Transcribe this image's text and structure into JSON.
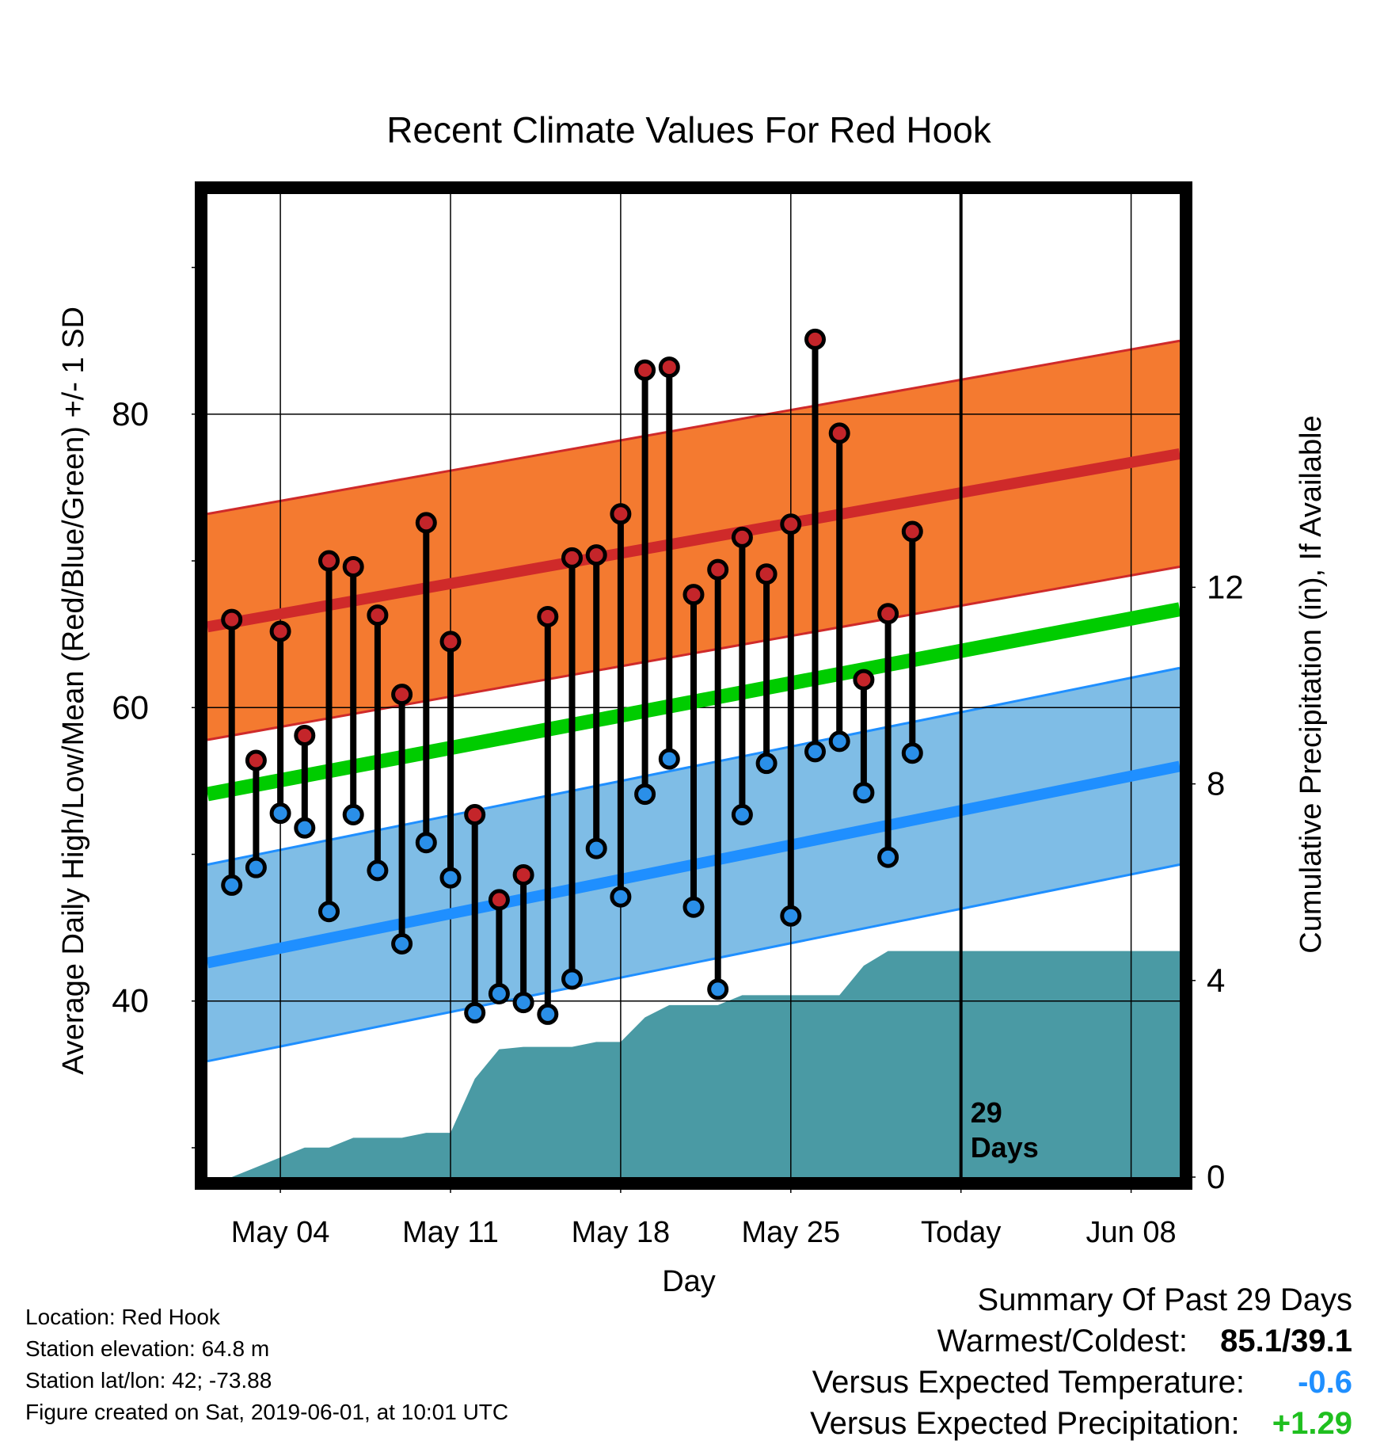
{
  "chart_data": {
    "type": "line",
    "title": "Recent Climate Values For Red Hook",
    "xlabel": "Day",
    "ylabel": "Average Daily High/Low/Mean (Red/Blue/Green) +/- 1 SD",
    "y2label": "Cumulative Precipitation (in), If Available",
    "x_range": [
      "2019-05-01",
      "2019-06-10"
    ],
    "ylim": [
      28,
      95
    ],
    "y2lim": [
      0,
      20
    ],
    "x_ticks": [
      {
        "date": "2019-05-04",
        "label": "May 04"
      },
      {
        "date": "2019-05-11",
        "label": "May 11"
      },
      {
        "date": "2019-05-18",
        "label": "May 18"
      },
      {
        "date": "2019-05-25",
        "label": "May 25"
      },
      {
        "date": "2019-06-01",
        "label": "Today"
      },
      {
        "date": "2019-06-08",
        "label": "Jun 08"
      }
    ],
    "y_ticks": [
      {
        "v": 40,
        "label": "40"
      },
      {
        "v": 60,
        "label": "60"
      },
      {
        "v": 80,
        "label": "80"
      }
    ],
    "y_minor_ticks": [
      30,
      50,
      70,
      90
    ],
    "y2_ticks": [
      {
        "v": 0,
        "label": "0"
      },
      {
        "v": 4,
        "label": "4"
      },
      {
        "v": 8,
        "label": "8"
      },
      {
        "v": 12,
        "label": "12"
      }
    ],
    "today": "2019-06-01",
    "today_label": "29\nDays",
    "normal_high": {
      "start": [
        "2019-05-01",
        65.5
      ],
      "end": [
        "2019-06-10",
        77.3
      ],
      "sd": 7.7
    },
    "normal_low": {
      "start": [
        "2019-05-01",
        42.6
      ],
      "end": [
        "2019-06-10",
        56.0
      ],
      "sd": 6.7
    },
    "normal_mean": {
      "start": [
        "2019-05-01",
        54.1
      ],
      "end": [
        "2019-06-10",
        66.7
      ]
    },
    "daily": {
      "dates": [
        "2019-05-02",
        "2019-05-03",
        "2019-05-04",
        "2019-05-05",
        "2019-05-06",
        "2019-05-07",
        "2019-05-08",
        "2019-05-09",
        "2019-05-10",
        "2019-05-11",
        "2019-05-12",
        "2019-05-13",
        "2019-05-14",
        "2019-05-15",
        "2019-05-16",
        "2019-05-17",
        "2019-05-18",
        "2019-05-19",
        "2019-05-20",
        "2019-05-21",
        "2019-05-22",
        "2019-05-23",
        "2019-05-24",
        "2019-05-25",
        "2019-05-26",
        "2019-05-27",
        "2019-05-28",
        "2019-05-29",
        "2019-05-30"
      ],
      "high": [
        66.0,
        56.4,
        65.2,
        58.1,
        70.0,
        69.6,
        66.3,
        60.9,
        72.6,
        64.5,
        52.7,
        46.9,
        48.6,
        66.2,
        70.2,
        70.4,
        73.2,
        83.0,
        83.2,
        67.7,
        69.4,
        71.6,
        69.1,
        72.5,
        85.1,
        78.7,
        61.9,
        66.4,
        72.0
      ],
      "low": [
        47.9,
        49.1,
        52.8,
        51.8,
        46.1,
        52.7,
        48.9,
        43.9,
        50.8,
        48.4,
        39.2,
        40.5,
        39.9,
        39.1,
        41.5,
        50.4,
        47.1,
        54.1,
        56.5,
        46.4,
        40.8,
        52.7,
        56.2,
        45.8,
        57.0,
        57.7,
        54.2,
        49.8,
        56.9
      ]
    },
    "precip": {
      "dates": [
        "2019-05-02",
        "2019-05-03",
        "2019-05-04",
        "2019-05-05",
        "2019-05-06",
        "2019-05-07",
        "2019-05-08",
        "2019-05-09",
        "2019-05-10",
        "2019-05-11",
        "2019-05-12",
        "2019-05-13",
        "2019-05-14",
        "2019-05-15",
        "2019-05-16",
        "2019-05-17",
        "2019-05-18",
        "2019-05-19",
        "2019-05-20",
        "2019-05-21",
        "2019-05-22",
        "2019-05-23",
        "2019-05-24",
        "2019-05-25",
        "2019-05-26",
        "2019-05-27",
        "2019-05-28",
        "2019-05-29",
        "2019-05-30",
        "2019-05-31",
        "2019-06-01",
        "2019-06-10"
      ],
      "values": [
        0.0,
        0.2,
        0.4,
        0.6,
        0.6,
        0.8,
        0.8,
        0.8,
        0.9,
        0.9,
        2.0,
        2.6,
        2.65,
        2.65,
        2.65,
        2.75,
        2.75,
        3.25,
        3.5,
        3.5,
        3.5,
        3.7,
        3.7,
        3.7,
        3.7,
        3.7,
        4.3,
        4.6,
        4.6,
        4.6,
        4.6,
        4.6
      ]
    },
    "colors": {
      "high_band": "#f47a30",
      "high_line": "#cf2a2a",
      "high_point": "#c4252a",
      "low_band": "#7fbde6",
      "low_line": "#1f8fff",
      "low_point": "#2a8fe8",
      "mean_line": "#00cc00",
      "precip": "#4a9aa4"
    },
    "grid": true,
    "legend": "none"
  },
  "info": {
    "location": "Location: Red Hook",
    "elevation": "Station elevation: 64.8 m",
    "latlon": "Station lat/lon: 42; -73.88",
    "created": "Figure created on Sat, 2019-06-01, at 10:01 UTC"
  },
  "summary": {
    "heading": "Summary Of Past 29 Days",
    "warmest_label": "Warmest/Coldest:",
    "warmest_value": "85.1/39.1",
    "temp_label": "Versus Expected Temperature:",
    "temp_value": "-0.6",
    "temp_color": "#1f8fff",
    "precip_label": "Versus Expected Precipitation:",
    "precip_value": "+1.29",
    "precip_color": "#1fbf1f"
  }
}
